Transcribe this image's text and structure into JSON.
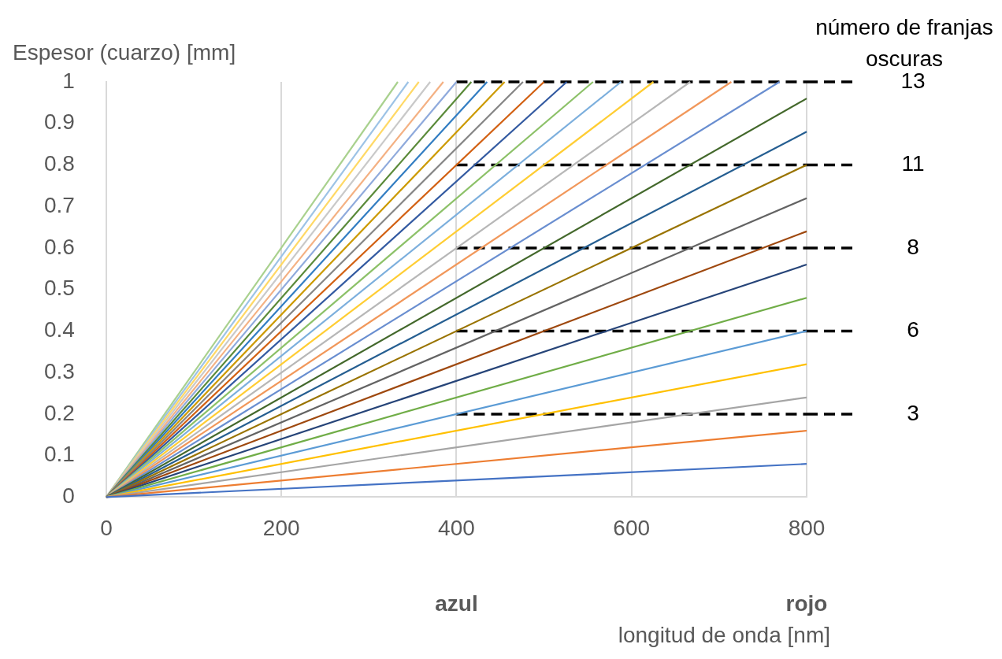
{
  "chart_data": {
    "type": "line",
    "ylabel": "Espesor (cuarzo) [mm]",
    "xlabel": "longitud de onda [nm]",
    "xlim": [
      0,
      800
    ],
    "xticks": [
      0,
      200,
      400,
      600,
      800
    ],
    "ylim": [
      0,
      1
    ],
    "yticks": [
      0,
      0.1,
      0.2,
      0.3,
      0.4,
      0.5,
      0.6,
      0.7,
      0.8,
      0.9,
      1
    ],
    "grid": "x",
    "marker": "none",
    "line_style": "solid",
    "series": [
      {
        "color": "#4472c4",
        "x": [
          0,
          800
        ],
        "values": [
          0,
          0.08
        ]
      },
      {
        "color": "#ed7d31",
        "x": [
          0,
          800
        ],
        "values": [
          0,
          0.16
        ]
      },
      {
        "color": "#a5a5a5",
        "x": [
          0,
          800
        ],
        "values": [
          0,
          0.24
        ]
      },
      {
        "color": "#ffc000",
        "x": [
          0,
          800
        ],
        "values": [
          0,
          0.32
        ]
      },
      {
        "color": "#5b9bd5",
        "x": [
          0,
          800
        ],
        "values": [
          0,
          0.4
        ]
      },
      {
        "color": "#70ad47",
        "x": [
          0,
          800
        ],
        "values": [
          0,
          0.48
        ]
      },
      {
        "color": "#264478",
        "x": [
          0,
          800
        ],
        "values": [
          0,
          0.56
        ]
      },
      {
        "color": "#9e480e",
        "x": [
          0,
          800
        ],
        "values": [
          0,
          0.64
        ]
      },
      {
        "color": "#636363",
        "x": [
          0,
          800
        ],
        "values": [
          0,
          0.72
        ]
      },
      {
        "color": "#997300",
        "x": [
          0,
          800
        ],
        "values": [
          0,
          0.8
        ]
      },
      {
        "color": "#255e91",
        "x": [
          0,
          800
        ],
        "values": [
          0,
          0.88
        ]
      },
      {
        "color": "#43682b",
        "x": [
          0,
          800
        ],
        "values": [
          0,
          0.96
        ]
      },
      {
        "color": "#698ed0",
        "x": [
          0,
          769
        ],
        "values": [
          0,
          1
        ]
      },
      {
        "color": "#f1975a",
        "x": [
          0,
          714
        ],
        "values": [
          0,
          1
        ]
      },
      {
        "color": "#b7b7b7",
        "x": [
          0,
          667
        ],
        "values": [
          0,
          1
        ]
      },
      {
        "color": "#ffcd33",
        "x": [
          0,
          625
        ],
        "values": [
          0,
          1
        ]
      },
      {
        "color": "#7cafdd",
        "x": [
          0,
          588
        ],
        "values": [
          0,
          1
        ]
      },
      {
        "color": "#8cc168",
        "x": [
          0,
          556
        ],
        "values": [
          0,
          1
        ]
      },
      {
        "color": "#335aa1",
        "x": [
          0,
          526
        ],
        "values": [
          0,
          1
        ]
      },
      {
        "color": "#d26012",
        "x": [
          0,
          500
        ],
        "values": [
          0,
          1
        ]
      },
      {
        "color": "#848484",
        "x": [
          0,
          476
        ],
        "values": [
          0,
          1
        ]
      },
      {
        "color": "#cc9a00",
        "x": [
          0,
          455
        ],
        "values": [
          0,
          1
        ]
      },
      {
        "color": "#327dc2",
        "x": [
          0,
          435
        ],
        "values": [
          0,
          1
        ]
      },
      {
        "color": "#5a8a39",
        "x": [
          0,
          417
        ],
        "values": [
          0,
          1
        ]
      },
      {
        "color": "#8faadc",
        "x": [
          0,
          400
        ],
        "values": [
          0,
          1
        ]
      },
      {
        "color": "#f4b183",
        "x": [
          0,
          385
        ],
        "values": [
          0,
          1
        ]
      },
      {
        "color": "#c9c9c9",
        "x": [
          0,
          370
        ],
        "values": [
          0,
          1
        ]
      },
      {
        "color": "#ffd966",
        "x": [
          0,
          357
        ],
        "values": [
          0,
          1
        ]
      },
      {
        "color": "#9dc3e6",
        "x": [
          0,
          345
        ],
        "values": [
          0,
          1
        ]
      },
      {
        "color": "#a9d18e",
        "x": [
          0,
          333
        ],
        "values": [
          0,
          1
        ]
      },
      {
        "name": "13",
        "color": "#000000",
        "x": [
          400,
          800
        ],
        "values": [
          1,
          1
        ],
        "line_style": "dashed"
      },
      {
        "name": "11",
        "color": "#000000",
        "x": [
          400,
          800
        ],
        "values": [
          0.8,
          0.8
        ],
        "line_style": "dashed"
      },
      {
        "name": "8",
        "color": "#000000",
        "x": [
          400,
          800
        ],
        "values": [
          0.6,
          0.6
        ],
        "line_style": "dashed"
      },
      {
        "name": "6",
        "color": "#000000",
        "x": [
          400,
          800
        ],
        "values": [
          0.4,
          0.4
        ],
        "line_style": "dashed"
      },
      {
        "name": "3",
        "color": "#000000",
        "x": [
          400,
          800
        ],
        "values": [
          0.2,
          0.2
        ],
        "line_style": "dashed"
      }
    ],
    "legend": "right",
    "legend_title": "número de franjas oscuras",
    "annotations": [
      "azul",
      "rojo"
    ]
  }
}
